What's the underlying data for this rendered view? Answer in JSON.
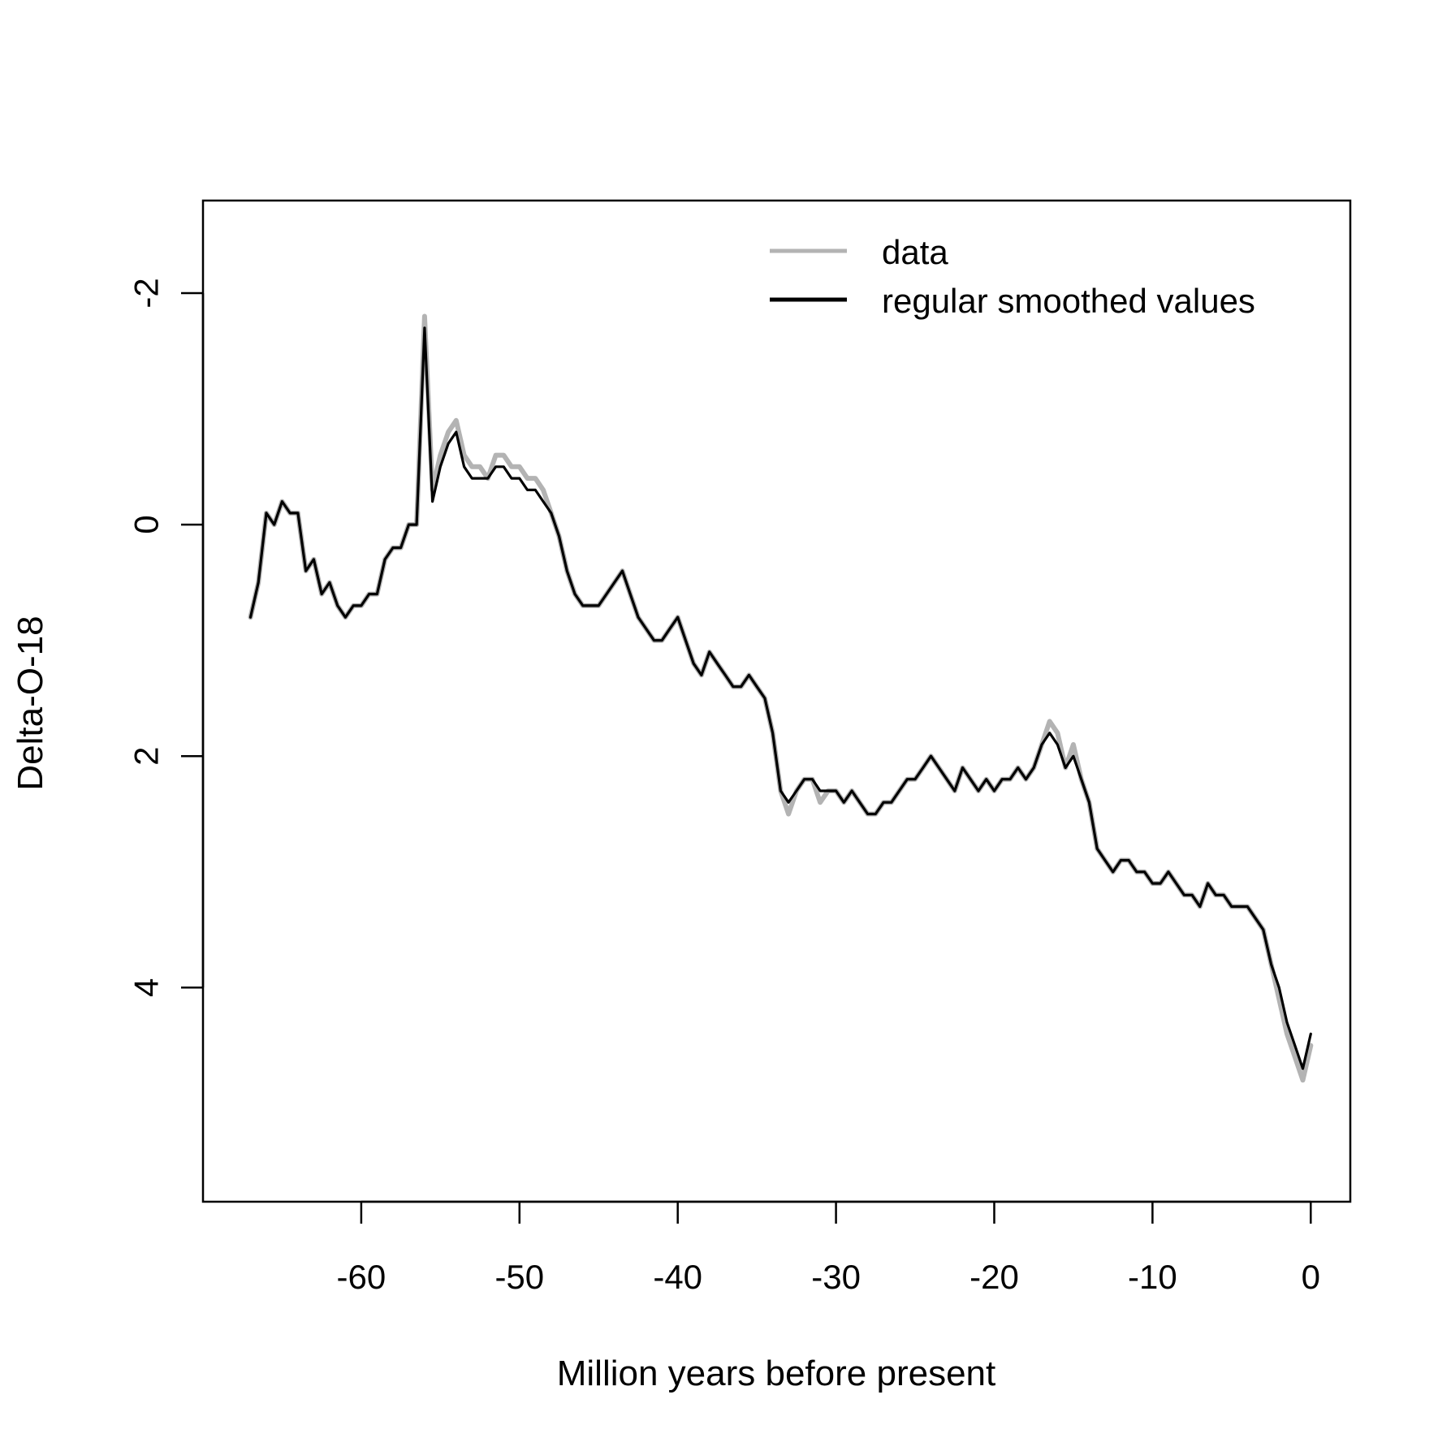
{
  "chart_data": {
    "type": "line",
    "xlabel": "Million years before present",
    "ylabel": "Delta-O-18",
    "xlim": [
      -70,
      2.5
    ],
    "ylim": [
      5.85,
      -2.8
    ],
    "y_reversed": true,
    "x_ticks": [
      -60,
      -50,
      -40,
      -30,
      -20,
      -10,
      0
    ],
    "x_tick_labels": [
      "-60",
      "-50",
      "-40",
      "-30",
      "-20",
      "-10",
      "0"
    ],
    "y_ticks": [
      -2,
      0,
      2,
      4
    ],
    "y_tick_labels": [
      "-2",
      "0",
      "2",
      "4"
    ],
    "grid": false,
    "legend_position": "top-right",
    "series": [
      {
        "name": "data",
        "color": "#b3b3b3",
        "x": [
          -67.0,
          -66.5,
          -66.0,
          -65.5,
          -65.0,
          -64.5,
          -64.0,
          -63.5,
          -63.0,
          -62.5,
          -62.0,
          -61.5,
          -61.0,
          -60.5,
          -60.0,
          -59.5,
          -59.0,
          -58.5,
          -58.0,
          -57.5,
          -57.0,
          -56.5,
          -56.0,
          -55.5,
          -55.0,
          -54.5,
          -54.0,
          -53.5,
          -53.0,
          -52.5,
          -52.0,
          -51.5,
          -51.0,
          -50.5,
          -50.0,
          -49.5,
          -49.0,
          -48.5,
          -48.0,
          -47.5,
          -47.0,
          -46.5,
          -46.0,
          -45.5,
          -45.0,
          -44.5,
          -44.0,
          -43.5,
          -43.0,
          -42.5,
          -42.0,
          -41.5,
          -41.0,
          -40.5,
          -40.0,
          -39.5,
          -39.0,
          -38.5,
          -38.0,
          -37.5,
          -37.0,
          -36.5,
          -36.0,
          -35.5,
          -35.0,
          -34.5,
          -34.0,
          -33.5,
          -33.0,
          -32.5,
          -32.0,
          -31.5,
          -31.0,
          -30.5,
          -30.0,
          -29.5,
          -29.0,
          -28.5,
          -28.0,
          -27.5,
          -27.0,
          -26.5,
          -26.0,
          -25.5,
          -25.0,
          -24.5,
          -24.0,
          -23.5,
          -23.0,
          -22.5,
          -22.0,
          -21.5,
          -21.0,
          -20.5,
          -20.0,
          -19.5,
          -19.0,
          -18.5,
          -18.0,
          -17.5,
          -17.0,
          -16.5,
          -16.0,
          -15.5,
          -15.0,
          -14.5,
          -14.0,
          -13.5,
          -13.0,
          -12.5,
          -12.0,
          -11.5,
          -11.0,
          -10.5,
          -10.0,
          -9.5,
          -9.0,
          -8.5,
          -8.0,
          -7.5,
          -7.0,
          -6.5,
          -6.0,
          -5.5,
          -5.0,
          -4.5,
          -4.0,
          -3.5,
          -3.0,
          -2.5,
          -2.0,
          -1.5,
          -1.0,
          -0.5,
          0.0
        ],
        "y": [
          0.8,
          0.5,
          -0.1,
          0.0,
          -0.2,
          -0.1,
          -0.1,
          0.4,
          0.3,
          0.6,
          0.5,
          0.7,
          0.8,
          0.7,
          0.7,
          0.6,
          0.6,
          0.3,
          0.2,
          0.2,
          0.0,
          0.0,
          -1.8,
          -0.3,
          -0.6,
          -0.8,
          -0.9,
          -0.6,
          -0.5,
          -0.5,
          -0.4,
          -0.6,
          -0.6,
          -0.5,
          -0.5,
          -0.4,
          -0.4,
          -0.3,
          -0.1,
          0.1,
          0.4,
          0.6,
          0.7,
          0.7,
          0.7,
          0.6,
          0.5,
          0.4,
          0.6,
          0.8,
          0.9,
          1.0,
          1.0,
          0.9,
          0.8,
          1.0,
          1.2,
          1.3,
          1.1,
          1.2,
          1.3,
          1.4,
          1.4,
          1.3,
          1.4,
          1.5,
          1.8,
          2.3,
          2.5,
          2.3,
          2.2,
          2.2,
          2.4,
          2.3,
          2.3,
          2.4,
          2.3,
          2.4,
          2.5,
          2.5,
          2.4,
          2.4,
          2.3,
          2.2,
          2.2,
          2.1,
          2.0,
          2.1,
          2.2,
          2.3,
          2.1,
          2.2,
          2.3,
          2.2,
          2.3,
          2.2,
          2.2,
          2.1,
          2.2,
          2.1,
          1.9,
          1.7,
          1.8,
          2.1,
          1.9,
          2.2,
          2.4,
          2.8,
          2.9,
          3.0,
          2.9,
          2.9,
          3.0,
          3.0,
          3.1,
          3.1,
          3.0,
          3.1,
          3.2,
          3.2,
          3.3,
          3.1,
          3.2,
          3.2,
          3.3,
          3.3,
          3.3,
          3.4,
          3.5,
          3.8,
          4.1,
          4.4,
          4.6,
          4.8,
          4.5
        ]
      },
      {
        "name": "regular smoothed values",
        "color": "#000000",
        "x": [
          -67.0,
          -66.5,
          -66.0,
          -65.5,
          -65.0,
          -64.5,
          -64.0,
          -63.5,
          -63.0,
          -62.5,
          -62.0,
          -61.5,
          -61.0,
          -60.5,
          -60.0,
          -59.5,
          -59.0,
          -58.5,
          -58.0,
          -57.5,
          -57.0,
          -56.5,
          -56.0,
          -55.5,
          -55.0,
          -54.5,
          -54.0,
          -53.5,
          -53.0,
          -52.5,
          -52.0,
          -51.5,
          -51.0,
          -50.5,
          -50.0,
          -49.5,
          -49.0,
          -48.5,
          -48.0,
          -47.5,
          -47.0,
          -46.5,
          -46.0,
          -45.5,
          -45.0,
          -44.5,
          -44.0,
          -43.5,
          -43.0,
          -42.5,
          -42.0,
          -41.5,
          -41.0,
          -40.5,
          -40.0,
          -39.5,
          -39.0,
          -38.5,
          -38.0,
          -37.5,
          -37.0,
          -36.5,
          -36.0,
          -35.5,
          -35.0,
          -34.5,
          -34.0,
          -33.5,
          -33.0,
          -32.5,
          -32.0,
          -31.5,
          -31.0,
          -30.5,
          -30.0,
          -29.5,
          -29.0,
          -28.5,
          -28.0,
          -27.5,
          -27.0,
          -26.5,
          -26.0,
          -25.5,
          -25.0,
          -24.5,
          -24.0,
          -23.5,
          -23.0,
          -22.5,
          -22.0,
          -21.5,
          -21.0,
          -20.5,
          -20.0,
          -19.5,
          -19.0,
          -18.5,
          -18.0,
          -17.5,
          -17.0,
          -16.5,
          -16.0,
          -15.5,
          -15.0,
          -14.5,
          -14.0,
          -13.5,
          -13.0,
          -12.5,
          -12.0,
          -11.5,
          -11.0,
          -10.5,
          -10.0,
          -9.5,
          -9.0,
          -8.5,
          -8.0,
          -7.5,
          -7.0,
          -6.5,
          -6.0,
          -5.5,
          -5.0,
          -4.5,
          -4.0,
          -3.5,
          -3.0,
          -2.5,
          -2.0,
          -1.5,
          -1.0,
          -0.5,
          0.0
        ],
        "y": [
          0.8,
          0.5,
          -0.1,
          0.0,
          -0.2,
          -0.1,
          -0.1,
          0.4,
          0.3,
          0.6,
          0.5,
          0.7,
          0.8,
          0.7,
          0.7,
          0.6,
          0.6,
          0.3,
          0.2,
          0.2,
          0.0,
          0.0,
          -1.7,
          -0.2,
          -0.5,
          -0.7,
          -0.8,
          -0.5,
          -0.4,
          -0.4,
          -0.4,
          -0.5,
          -0.5,
          -0.4,
          -0.4,
          -0.3,
          -0.3,
          -0.2,
          -0.1,
          0.1,
          0.4,
          0.6,
          0.7,
          0.7,
          0.7,
          0.6,
          0.5,
          0.4,
          0.6,
          0.8,
          0.9,
          1.0,
          1.0,
          0.9,
          0.8,
          1.0,
          1.2,
          1.3,
          1.1,
          1.2,
          1.3,
          1.4,
          1.4,
          1.3,
          1.4,
          1.5,
          1.8,
          2.3,
          2.4,
          2.3,
          2.2,
          2.2,
          2.3,
          2.3,
          2.3,
          2.4,
          2.3,
          2.4,
          2.5,
          2.5,
          2.4,
          2.4,
          2.3,
          2.2,
          2.2,
          2.1,
          2.0,
          2.1,
          2.2,
          2.3,
          2.1,
          2.2,
          2.3,
          2.2,
          2.3,
          2.2,
          2.2,
          2.1,
          2.2,
          2.1,
          1.9,
          1.8,
          1.9,
          2.1,
          2.0,
          2.2,
          2.4,
          2.8,
          2.9,
          3.0,
          2.9,
          2.9,
          3.0,
          3.0,
          3.1,
          3.1,
          3.0,
          3.1,
          3.2,
          3.2,
          3.3,
          3.1,
          3.2,
          3.2,
          3.3,
          3.3,
          3.3,
          3.4,
          3.5,
          3.8,
          4.0,
          4.3,
          4.5,
          4.7,
          4.4
        ]
      }
    ]
  }
}
